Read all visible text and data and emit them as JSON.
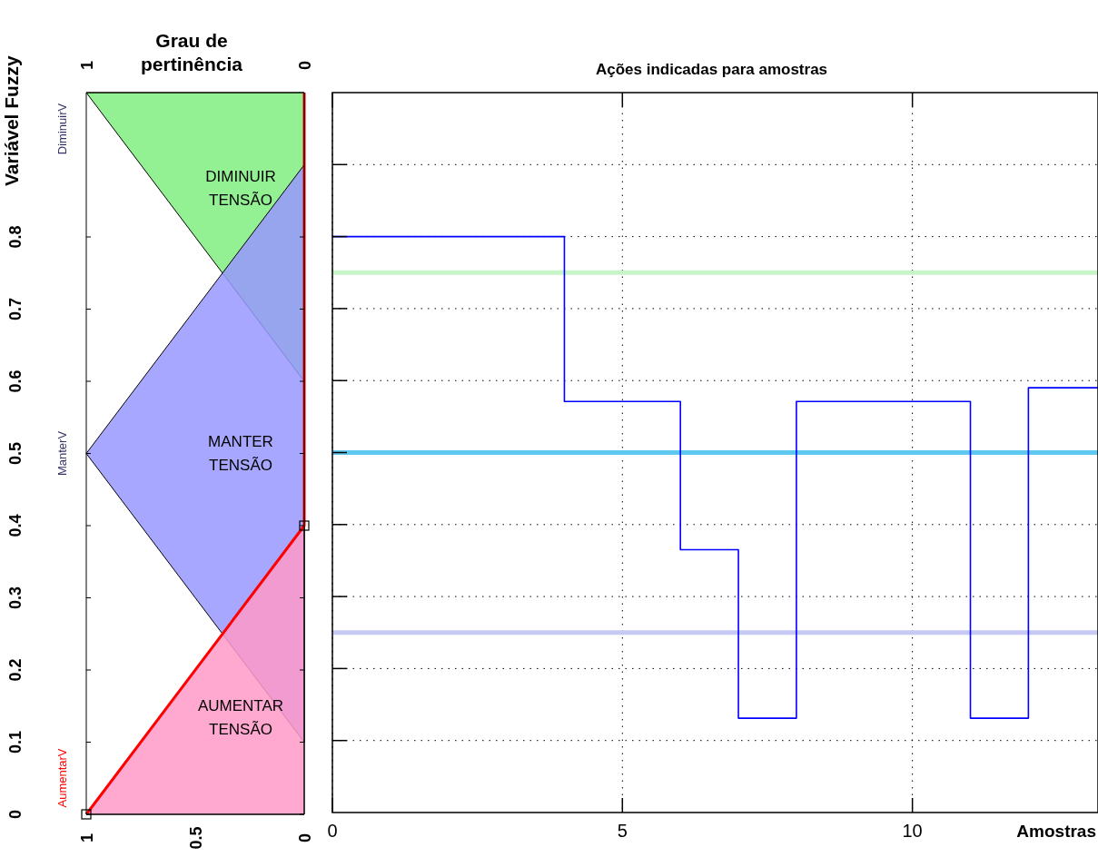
{
  "chart_data": [
    {
      "type": "area",
      "ylabel": "Variável Fuzzy",
      "x2label": "Grau de pertinência",
      "xlim": [
        1,
        0
      ],
      "xticks": [
        1,
        0.5,
        0
      ],
      "x2lim": [
        1,
        0
      ],
      "x2ticks": [
        1,
        0
      ],
      "ylim": [
        0,
        1
      ],
      "yticks": [
        0,
        0.1,
        0.2,
        0.3,
        0.4,
        0.5,
        0.6,
        0.7,
        0.8
      ],
      "series": [
        {
          "name": "DiminuirV",
          "type": "area",
          "color": "#80ee80",
          "x": [
            1,
            0,
            0
          ],
          "values": [
            1,
            0.6,
            1
          ]
        },
        {
          "name": "ManterV",
          "type": "area",
          "color": "#9898ff",
          "x": [
            0,
            1,
            0
          ],
          "values": [
            0.9,
            0.5,
            0.1
          ]
        },
        {
          "type": "area",
          "color": "#ff99c8",
          "x": [
            1,
            0,
            0
          ],
          "values": [
            0,
            0.4,
            0
          ]
        },
        {
          "name": "AumentarV",
          "type": "line",
          "color": "#ff0000",
          "x": [
            1,
            0,
            0
          ],
          "values": [
            0,
            0.4,
            1
          ]
        },
        {
          "type": "scatter",
          "marker": "square",
          "color": "#000000",
          "x": [
            1,
            0
          ],
          "values": [
            0,
            0.4
          ]
        }
      ],
      "annotations": [
        "DIMINUIR\nTENSÃO",
        "MANTER\nTENSÃO",
        "AUMENTAR\nTENSÃO"
      ]
    },
    {
      "type": "step",
      "title": "Ações indicadas para amostras",
      "xlabel": "Amostras",
      "xlim": [
        0,
        13.2
      ],
      "xticks": [
        0,
        5,
        10
      ],
      "ylim": [
        0,
        1
      ],
      "yticks": [
        0.1,
        0.2,
        0.3,
        0.4,
        0.5,
        0.6,
        0.7,
        0.8,
        0.9
      ],
      "tick_labels": "x",
      "grid": true,
      "line_style": "solid",
      "series": [
        {
          "color": "#0000ff",
          "x": [
            0,
            4,
            6,
            7,
            8,
            11,
            12,
            13.2
          ],
          "values": [
            0.8,
            0.571,
            0.365,
            0.131,
            0.571,
            0.131,
            0.59,
            0.59
          ]
        }
      ],
      "ref_lines": [
        {
          "axis": "y",
          "value": 0.75,
          "color": "#c8f5c8"
        },
        {
          "axis": "y",
          "value": 0.5,
          "color": "#5ec8f0"
        },
        {
          "axis": "y",
          "value": 0.25,
          "color": "#c8c8f5"
        }
      ]
    }
  ]
}
